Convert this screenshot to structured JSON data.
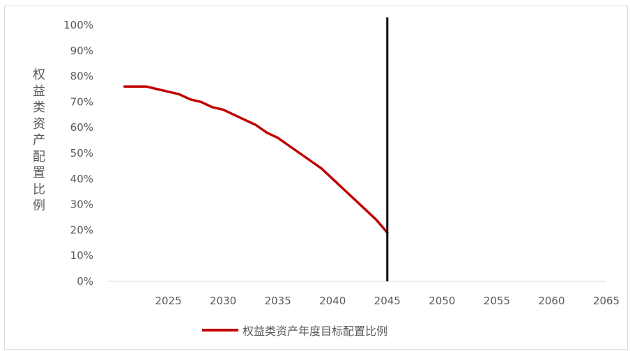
{
  "chart_data": {
    "type": "line",
    "title": "",
    "xlabel": "",
    "ylabel": "权益类资产配置比例",
    "xlim": [
      2020,
      2065
    ],
    "ylim": [
      0,
      100
    ],
    "x_ticks": [
      "2025",
      "2030",
      "2035",
      "2040",
      "2045",
      "2050",
      "2055",
      "2060",
      "2065"
    ],
    "y_ticks": [
      "0%",
      "10%",
      "20%",
      "30%",
      "40%",
      "50%",
      "60%",
      "70%",
      "80%",
      "90%",
      "100%"
    ],
    "legend_position": "bottom",
    "grid": false,
    "vertical_marker": {
      "x": 2045
    },
    "series": [
      {
        "name": "权益类资产年度目标配置比例",
        "color": "#c00000",
        "x": [
          2021,
          2022,
          2023,
          2024,
          2025,
          2026,
          2027,
          2028,
          2029,
          2030,
          2031,
          2032,
          2033,
          2034,
          2035,
          2036,
          2037,
          2038,
          2039,
          2040,
          2041,
          2042,
          2043,
          2044,
          2045
        ],
        "y": [
          76,
          76,
          76,
          75,
          74,
          73,
          71,
          70,
          68,
          67,
          65,
          63,
          61,
          58,
          56,
          53,
          50,
          47,
          44,
          40,
          36,
          32,
          28,
          24,
          19
        ]
      }
    ]
  }
}
